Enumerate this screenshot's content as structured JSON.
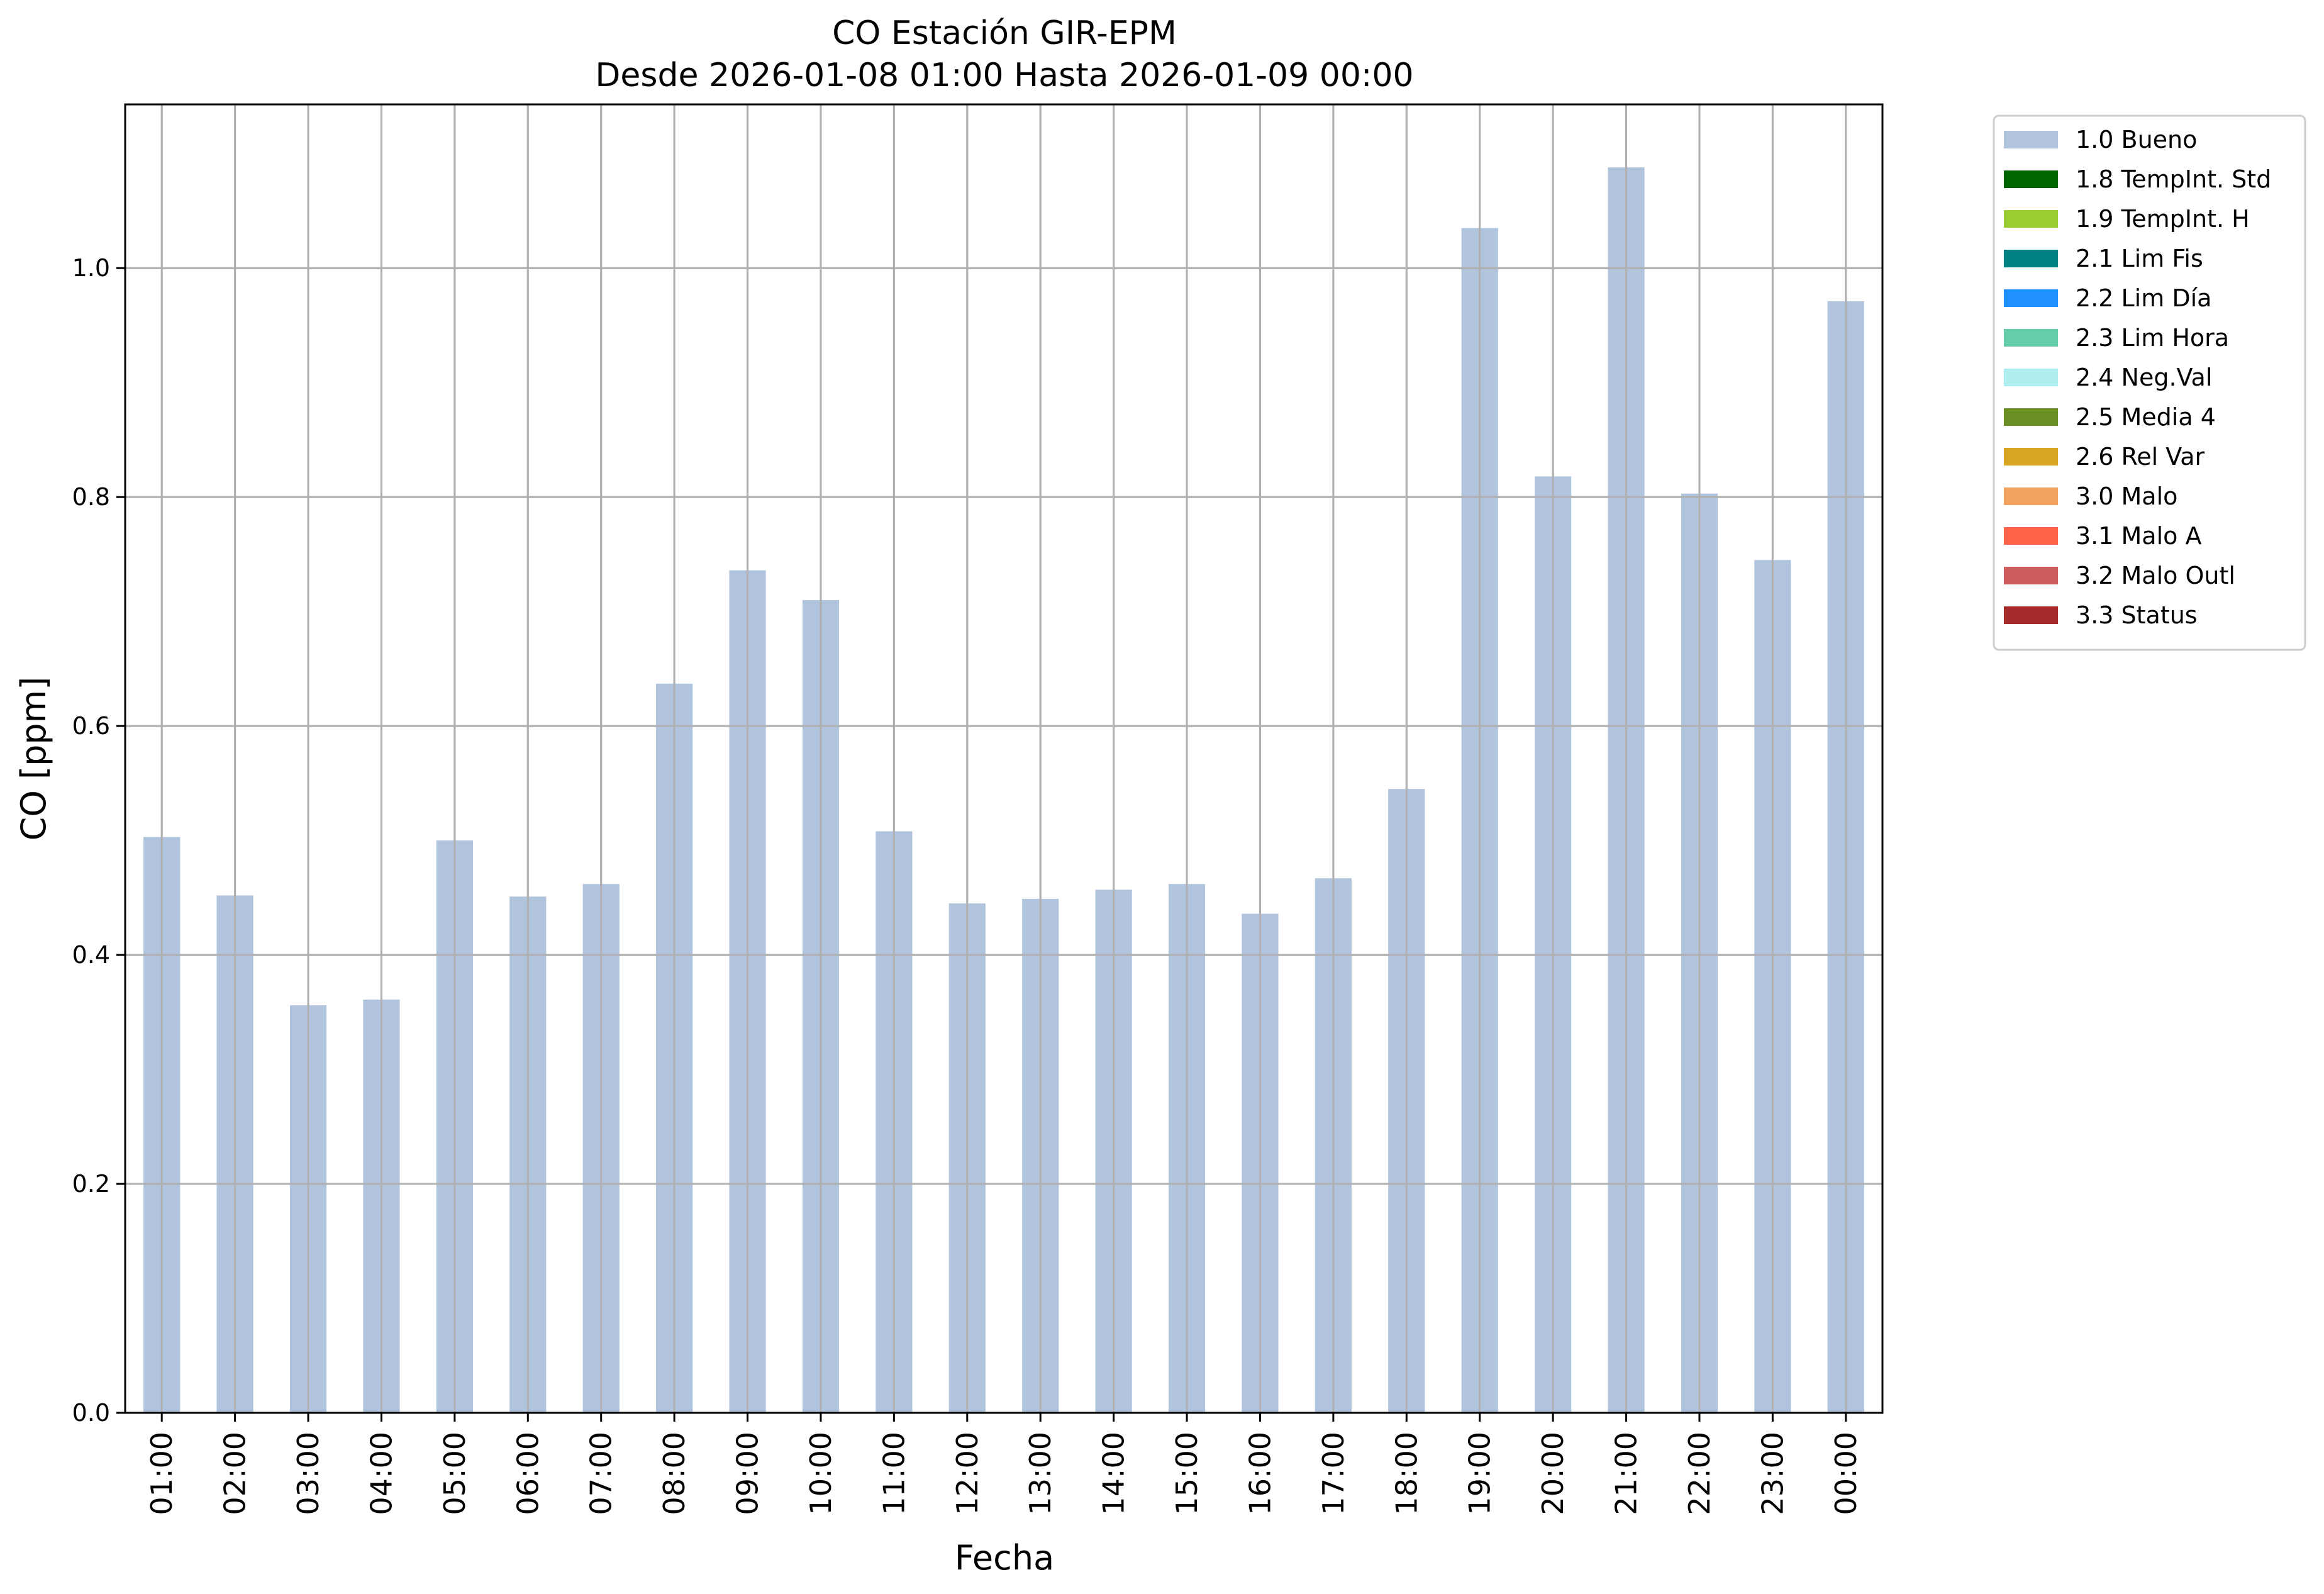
{
  "chart_data": {
    "type": "bar",
    "title_line1": "CO Estación GIR-EPM",
    "title_line2": "Desde 2026-01-08 01:00 Hasta 2026-01-09 00:00",
    "xlabel": "Fecha",
    "ylabel": "CO [ppm]",
    "ylim": [
      0,
      1.143
    ],
    "yticks": [
      "0.0",
      "0.2",
      "0.4",
      "0.6",
      "0.8",
      "1.0"
    ],
    "grid": true,
    "legend_position": "outside-right-top",
    "categories": [
      "01:00",
      "02:00",
      "03:00",
      "04:00",
      "05:00",
      "06:00",
      "07:00",
      "08:00",
      "09:00",
      "10:00",
      "11:00",
      "12:00",
      "13:00",
      "14:00",
      "15:00",
      "16:00",
      "17:00",
      "18:00",
      "19:00",
      "20:00",
      "21:00",
      "22:00",
      "23:00",
      "00:00"
    ],
    "series": [
      {
        "name": "1.0 Bueno",
        "color": "#b0c4de",
        "values": [
          0.503,
          0.452,
          0.356,
          0.361,
          0.5,
          0.451,
          0.462,
          0.637,
          0.736,
          0.71,
          0.508,
          0.445,
          0.449,
          0.457,
          0.462,
          0.436,
          0.467,
          0.545,
          1.035,
          0.818,
          1.088,
          0.803,
          0.745,
          0.971
        ]
      }
    ],
    "legend": [
      {
        "label": "1.0 Bueno",
        "color": "#b0c4de"
      },
      {
        "label": "1.8 TempInt. Std",
        "color": "#006400"
      },
      {
        "label": "1.9 TempInt. H",
        "color": "#9acd32"
      },
      {
        "label": "2.1 Lim Fis",
        "color": "#008080"
      },
      {
        "label": "2.2 Lim Día",
        "color": "#1e90ff"
      },
      {
        "label": "2.3 Lim Hora",
        "color": "#66cdaa"
      },
      {
        "label": "2.4 Neg.Val",
        "color": "#afeeee"
      },
      {
        "label": "2.5 Media 4",
        "color": "#6b8e23"
      },
      {
        "label": "2.6 Rel Var",
        "color": "#daa520"
      },
      {
        "label": "3.0 Malo",
        "color": "#f4a460"
      },
      {
        "label": "3.1 Malo A",
        "color": "#ff6347"
      },
      {
        "label": "3.2 Malo Outl",
        "color": "#cd5c5c"
      },
      {
        "label": "3.3 Status",
        "color": "#a52a2a"
      }
    ]
  }
}
